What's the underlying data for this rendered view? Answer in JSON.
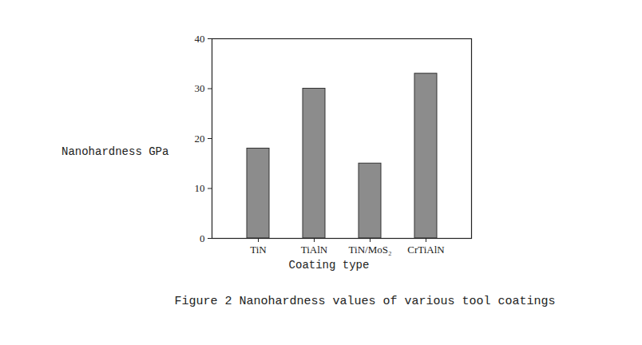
{
  "chart_data": {
    "type": "bar",
    "title": "Figure 2 Nanohardness values of various tool coatings",
    "x_label": "Coating type",
    "y_label": "Nanohardness GPa",
    "categories": [
      "TiN",
      "TiAlN",
      "TiN/MoS₂",
      "CrTiAlN"
    ],
    "values": [
      18,
      30,
      15,
      33
    ],
    "color": "#8c8c8c",
    "ylim": [
      0,
      40
    ],
    "yticks": [
      0,
      10,
      20,
      30,
      40
    ],
    "grid": false
  }
}
